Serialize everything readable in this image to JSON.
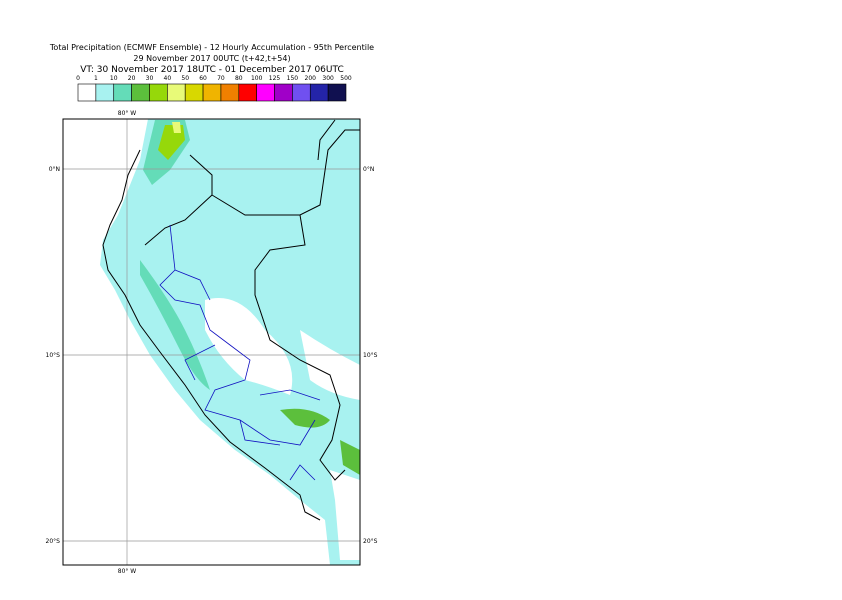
{
  "header": {
    "lines": [
      "Total Precipitation (ECMWF Ensemble) - 12 Hourly Accumulation - 95th Percentile",
      "29 November 2017 00UTC (t+42,t+54)",
      "VT: 30 November 2017 18UTC - 01 December 2017 06UTC"
    ]
  },
  "legend": {
    "labels": [
      "0",
      "1",
      "10",
      "20",
      "30",
      "40",
      "50",
      "60",
      "70",
      "80",
      "100",
      "125",
      "150",
      "200",
      "300",
      "500"
    ],
    "colors": [
      "#ffffff",
      "#a8f2f0",
      "#64dcb8",
      "#5cbf3c",
      "#96d80a",
      "#e8fa78",
      "#d8d800",
      "#f0b400",
      "#f08000",
      "#ff0000",
      "#ff00ff",
      "#a000c8",
      "#7050f0",
      "#2424a8",
      "#101050"
    ]
  },
  "map": {
    "lon_label": "80° W",
    "lat_labels": [
      "0°N",
      "10°S",
      "20°S"
    ]
  }
}
